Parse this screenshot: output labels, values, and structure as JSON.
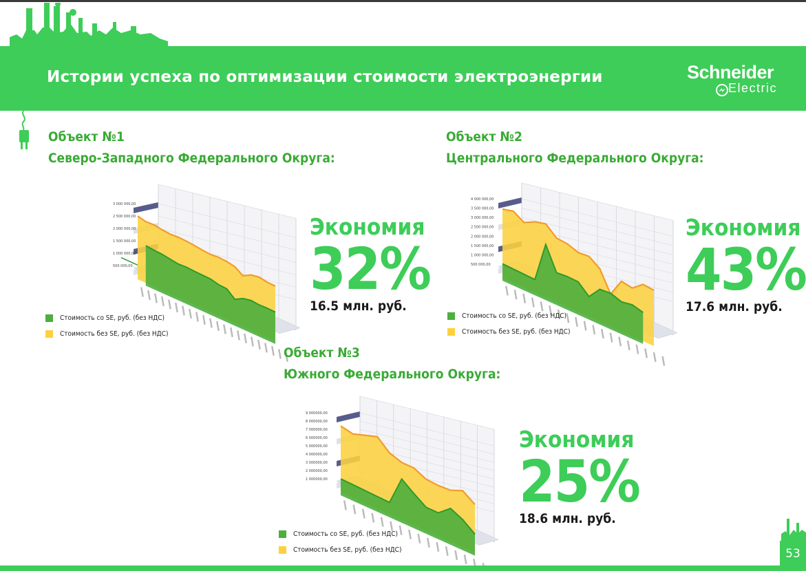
{
  "header": {
    "title": "Истории успеха по оптимизации стоимости электроэнергии",
    "logo_line1": "Schneider",
    "logo_line2": "Electric"
  },
  "objects": [
    {
      "title_line1": "Объект №1",
      "title_line2": "Северо-Западного Федерального Округа:",
      "saving_label": "Экономия",
      "saving_percent": "32%",
      "saving_amount": "16.5 млн. руб."
    },
    {
      "title_line1": "Объект №2",
      "title_line2": "Центрального Федерального Округа:",
      "saving_label": "Экономия",
      "saving_percent": "43%",
      "saving_amount": "17.6 млн. руб."
    },
    {
      "title_line1": "Объект №3",
      "title_line2": "Южного Федерального Округа:",
      "saving_label": "Экономия",
      "saving_percent": "25%",
      "saving_amount": "18.6 млн. руб."
    }
  ],
  "legend": {
    "with_se": "Стоимость со SE, руб. (без НДС)",
    "without_se": "Стоимость без SE, руб. (без НДС)"
  },
  "colors": {
    "green": "#3dcd58",
    "green_series": "#4caf3e",
    "yellow_series": "#fcd140",
    "orange_line": "#f29a2e"
  },
  "page_number": "53",
  "chart_data": [
    {
      "type": "area",
      "y_ticks": [
        "3 000 000,00",
        "2 500 000,00",
        "2 000 000,00",
        "1 500 000,00",
        "1 000 000,00",
        "500 000,00"
      ],
      "ylim": [
        500000,
        3000000
      ],
      "series": [
        {
          "name": "Стоимость без SE, руб. (без НДС)",
          "values": [
            2500000,
            2420000,
            2440000,
            2390000,
            2360000,
            2380000,
            2370000,
            2340000,
            2300000,
            2270000,
            2300000,
            2280000,
            2220000,
            2000000,
            2180000,
            2240000,
            2180000,
            2170000
          ]
        },
        {
          "name": "Стоимость со SE, руб. (без НДС)",
          "values": [
            null,
            1450000,
            1420000,
            1400000,
            1350000,
            1300000,
            1320000,
            1300000,
            1290000,
            1280000,
            1200000,
            1180000,
            900000,
            1080000,
            1150000,
            1120000,
            1130000,
            1120000
          ]
        }
      ],
      "tail_before": [
        520000,
        520000
      ]
    },
    {
      "type": "area",
      "y_ticks": [
        "4 000 000,00",
        "3 500 000,00",
        "3 000 000,00",
        "2 500 000,00",
        "2 000 000,00",
        "1 500 000,00",
        "1 000 000,00",
        "500 000,00"
      ],
      "ylim": [
        500000,
        4000000
      ],
      "series": [
        {
          "name": "Стоимость без SE, руб. (без НДС)",
          "values": [
            3450000,
            3600000,
            3250000,
            3550000,
            3700000,
            3200000,
            3150000,
            2950000,
            3000000,
            2600000,
            1500000,
            2450000,
            2350000,
            2800000,
            2750000
          ]
        },
        {
          "name": "Стоимость со SE, руб. (без НДС)",
          "values": [
            520000,
            500000,
            480000,
            460000,
            2600000,
            1350000,
            1400000,
            1380000,
            850000,
            1500000,
            1550000,
            1350000,
            1450000,
            1300000
          ]
        }
      ]
    },
    {
      "type": "area",
      "y_ticks": [
        "9 000000,00",
        "8 000000,00",
        "7 000000,00",
        "6 000000,00",
        "5 000000,00",
        "4 000000,00",
        "3 000000,00",
        "2 000000,00",
        "1 000000,00"
      ],
      "ylim": [
        1000000,
        9000000
      ],
      "series": [
        {
          "name": "Стоимость без SE, руб. (без НДС)",
          "values": [
            7400000,
            7100000,
            7600000,
            8100000,
            6800000,
            6300000,
            6300000,
            5600000,
            5500000,
            5600000,
            6200000,
            5200000
          ]
        },
        {
          "name": "Стоимость со SE, руб. (без НДС)",
          "values": [
            1000000,
            950000,
            900000,
            850000,
            800000,
            4300000,
            3200000,
            2200000,
            2200000,
            3400000,
            2700000,
            1600000
          ]
        }
      ]
    }
  ]
}
